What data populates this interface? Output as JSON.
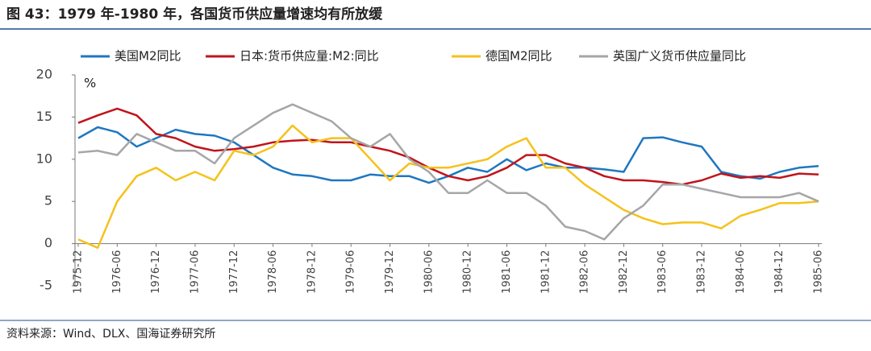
{
  "chart_data": {
    "type": "line",
    "title": "图 43：1979 年-1980 年，各国货币供应量增速均有所放缓",
    "y_label": "%",
    "source": "资料来源：Wind、DLX、国海证券研究所",
    "categories": [
      "1975-12",
      null,
      "1976-06",
      null,
      "1976-12",
      null,
      "1977-06",
      null,
      "1977-12",
      null,
      "1978-06",
      null,
      "1978-12",
      null,
      "1979-06",
      null,
      "1979-12",
      null,
      "1980-06",
      null,
      "1980-12",
      null,
      "1981-06",
      null,
      "1981-12",
      null,
      "1982-06",
      null,
      "1982-12",
      null,
      "1983-06",
      null,
      "1983-12",
      null,
      "1984-06",
      null,
      "1984-12",
      null,
      "1985-06"
    ],
    "series": [
      {
        "name": "美国M2同比",
        "color": "#1f77c0",
        "values": [
          12.5,
          13.8,
          13.2,
          11.5,
          12.5,
          13.5,
          13,
          12.8,
          12,
          10.5,
          9,
          8.2,
          8,
          7.5,
          7.5,
          8.2,
          8,
          8,
          7.2,
          8,
          9,
          8.5,
          10,
          8.7,
          9.5,
          9,
          9,
          8.8,
          8.5,
          12.5,
          12.6,
          12,
          11.5,
          8.5,
          8,
          7.7,
          8.5,
          9,
          9.2
        ]
      },
      {
        "name": "日本:货币供应量:M2:同比",
        "color": "#c0141c",
        "values": [
          14.3,
          15.2,
          16,
          15.2,
          13,
          12.5,
          11.5,
          11,
          11.2,
          11.5,
          12,
          12.2,
          12.3,
          12,
          12,
          11.5,
          11,
          10.2,
          9,
          8,
          7.5,
          8,
          9,
          10.5,
          10.5,
          9.5,
          9,
          8,
          7.5,
          7.5,
          7.3,
          7,
          7.5,
          8.3,
          7.8,
          8,
          7.8,
          8.3,
          8.2
        ]
      },
      {
        "name": "德国M2同比",
        "color": "#f5c21b",
        "values": [
          0.5,
          -0.5,
          5,
          8,
          9,
          7.5,
          8.5,
          7.5,
          11,
          10.5,
          11.5,
          14,
          12,
          12.5,
          12.5,
          10,
          7.5,
          9.5,
          9,
          9,
          9.5,
          10,
          11.5,
          12.5,
          9,
          9,
          7,
          5.5,
          4,
          3,
          2.3,
          2.5,
          2.5,
          1.8,
          3.3,
          4,
          4.8,
          4.8,
          5
        ]
      },
      {
        "name": "英国广义货币供应量同比",
        "color": "#a6a6a6",
        "values": [
          10.8,
          11,
          10.5,
          13,
          12,
          11,
          11,
          9.5,
          12.5,
          14,
          15.5,
          16.5,
          15.5,
          14.5,
          12.5,
          11.5,
          13,
          10,
          8.5,
          6,
          6,
          7.5,
          6,
          6,
          4.5,
          2,
          1.5,
          0.5,
          3,
          4.5,
          7,
          7,
          6.5,
          6,
          5.5,
          5.5,
          5.5,
          6,
          5
        ]
      }
    ],
    "ylim": [
      -5,
      20
    ],
    "yticks": [
      -5,
      0,
      5,
      10,
      15,
      20
    ]
  }
}
